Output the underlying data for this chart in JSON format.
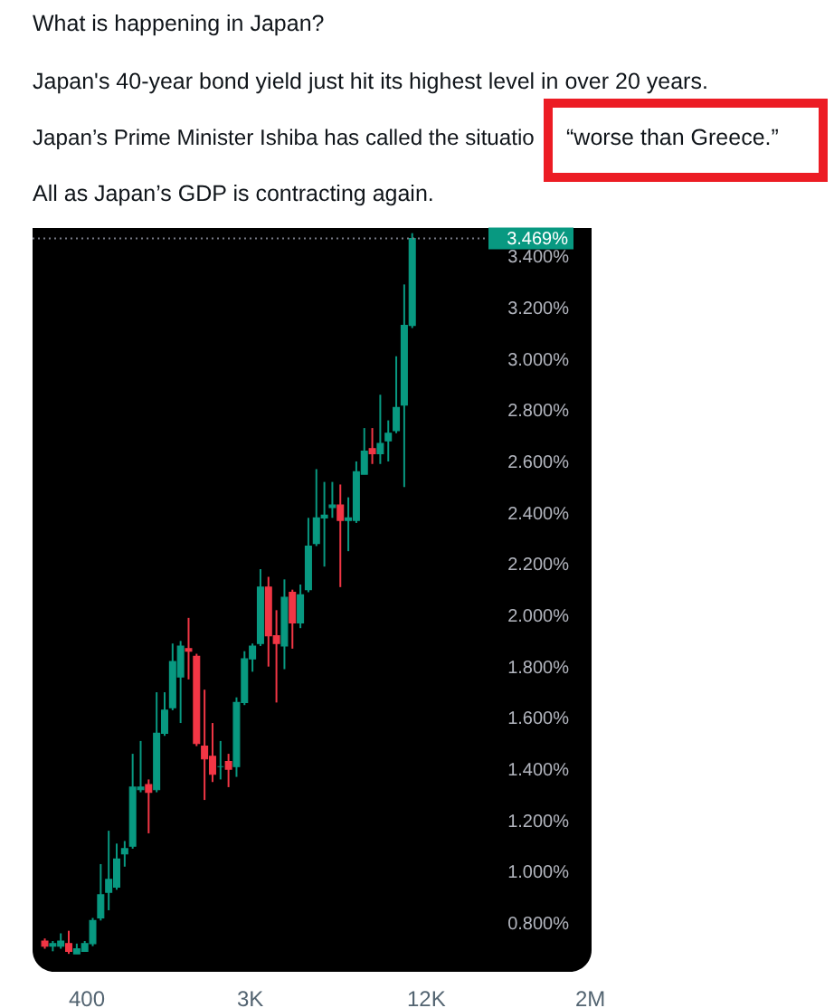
{
  "chart_data": {
    "type": "candlestick",
    "categories": [
      null,
      null,
      null,
      null,
      null,
      null,
      null,
      null,
      null,
      null,
      null,
      null,
      null,
      null,
      null,
      null,
      null,
      null,
      null,
      null,
      null,
      null,
      null,
      null,
      null,
      null,
      null,
      null,
      null,
      null,
      null,
      null,
      null,
      null,
      null,
      null,
      null,
      null,
      null,
      null,
      null,
      null,
      null,
      null,
      null,
      null,
      null
    ],
    "ohlc": [
      [
        0.73,
        0.74,
        0.7,
        0.71
      ],
      [
        0.71,
        0.73,
        0.69,
        0.72
      ],
      [
        0.71,
        0.76,
        0.7,
        0.73
      ],
      [
        0.72,
        0.77,
        0.68,
        0.69
      ],
      [
        0.68,
        0.72,
        0.68,
        0.7
      ],
      [
        0.69,
        0.73,
        0.69,
        0.72
      ],
      [
        0.72,
        0.82,
        0.71,
        0.81
      ],
      [
        0.82,
        1.03,
        0.81,
        0.91
      ],
      [
        0.92,
        1.16,
        0.85,
        0.97
      ],
      [
        0.94,
        1.11,
        0.93,
        1.05
      ],
      [
        1.07,
        1.12,
        1.02,
        1.09
      ],
      [
        1.1,
        1.46,
        1.09,
        1.33
      ],
      [
        1.32,
        1.51,
        1.31,
        1.33
      ],
      [
        1.34,
        1.36,
        1.15,
        1.31
      ],
      [
        1.32,
        1.7,
        1.31,
        1.54
      ],
      [
        1.54,
        1.7,
        1.53,
        1.63
      ],
      [
        1.64,
        1.89,
        1.63,
        1.82
      ],
      [
        1.76,
        1.9,
        1.58,
        1.88
      ],
      [
        1.87,
        1.99,
        1.75,
        1.86
      ],
      [
        1.84,
        1.85,
        1.49,
        1.5
      ],
      [
        1.49,
        1.71,
        1.28,
        1.44
      ],
      [
        1.45,
        1.58,
        1.35,
        1.38
      ],
      [
        1.41,
        1.51,
        1.36,
        1.41
      ],
      [
        1.43,
        1.46,
        1.33,
        1.4
      ],
      [
        1.41,
        1.68,
        1.37,
        1.66
      ],
      [
        1.66,
        1.86,
        1.65,
        1.83
      ],
      [
        1.83,
        1.89,
        1.78,
        1.88
      ],
      [
        1.89,
        2.18,
        1.88,
        2.11
      ],
      [
        2.11,
        2.15,
        1.8,
        1.92
      ],
      [
        1.92,
        2.02,
        1.66,
        1.89
      ],
      [
        1.88,
        2.14,
        1.79,
        2.07
      ],
      [
        2.09,
        2.1,
        1.87,
        1.97
      ],
      [
        1.97,
        2.12,
        1.95,
        2.08
      ],
      [
        2.1,
        2.38,
        2.09,
        2.27
      ],
      [
        2.28,
        2.57,
        2.27,
        2.38
      ],
      [
        2.38,
        2.52,
        2.19,
        2.39
      ],
      [
        2.42,
        2.52,
        2.38,
        2.43
      ],
      [
        2.43,
        2.51,
        2.11,
        2.37
      ],
      [
        2.37,
        2.46,
        2.25,
        2.38
      ],
      [
        2.37,
        2.6,
        2.36,
        2.56
      ],
      [
        2.55,
        2.73,
        2.55,
        2.64
      ],
      [
        2.65,
        2.73,
        2.59,
        2.63
      ],
      [
        2.63,
        2.86,
        2.59,
        2.67
      ],
      [
        2.68,
        2.76,
        2.6,
        2.71
      ],
      [
        2.72,
        3.01,
        2.71,
        2.81
      ],
      [
        2.82,
        3.29,
        2.5,
        3.13
      ],
      [
        3.13,
        3.49,
        3.12,
        3.469
      ]
    ],
    "colors": [
      "#f23645",
      "#089981",
      "#089981",
      "#f23645",
      "#089981",
      "#089981",
      "#089981",
      "#089981",
      "#089981",
      "#089981",
      "#089981",
      "#089981",
      "#089981",
      "#f23645",
      "#089981",
      "#089981",
      "#089981",
      "#089981",
      "#f23645",
      "#f23645",
      "#f23645",
      "#f23645",
      "#089981",
      "#f23645",
      "#089981",
      "#089981",
      "#089981",
      "#089981",
      "#f23645",
      "#f23645",
      "#089981",
      "#f23645",
      "#089981",
      "#089981",
      "#089981",
      "#089981",
      "#089981",
      "#f23645",
      "#089981",
      "#089981",
      "#089981",
      "#f23645",
      "#089981",
      "#089981",
      "#089981",
      "#089981",
      "#089981"
    ],
    "ylim": [
      0.61,
      3.51
    ],
    "yticks": [
      {
        "value": 0.8,
        "label": "0.800%"
      },
      {
        "value": 1.0,
        "label": "1.000%"
      },
      {
        "value": 1.2,
        "label": "1.200%"
      },
      {
        "value": 1.4,
        "label": "1.400%"
      },
      {
        "value": 1.6,
        "label": "1.600%"
      },
      {
        "value": 1.8,
        "label": "1.800%"
      },
      {
        "value": 2.0,
        "label": "2.000%"
      },
      {
        "value": 2.2,
        "label": "2.200%"
      },
      {
        "value": 2.4,
        "label": "2.400%"
      },
      {
        "value": 2.6,
        "label": "2.600%"
      },
      {
        "value": 2.8,
        "label": "2.800%"
      },
      {
        "value": 3.0,
        "label": "3.000%"
      },
      {
        "value": 3.2,
        "label": "3.200%"
      },
      {
        "value": 3.4,
        "label": "3.400%"
      }
    ],
    "tick_labels": "y",
    "ref_lines": [
      {
        "axis": "y",
        "value": 3.469,
        "label": "3.469%",
        "color": "#787b86",
        "line_style": "dotted"
      }
    ],
    "annotations": [
      "What is happening in Japan?",
      "Japan's 40-year bond yield just hit its highest level in over 20 years.",
      "Japan’s Prime Minister Ishiba has called the situatio",
      "“worse than Greece.”",
      "All as Japan’s GDP is contracting again.",
      "400",
      "3K",
      "12K",
      "2M"
    ]
  }
}
